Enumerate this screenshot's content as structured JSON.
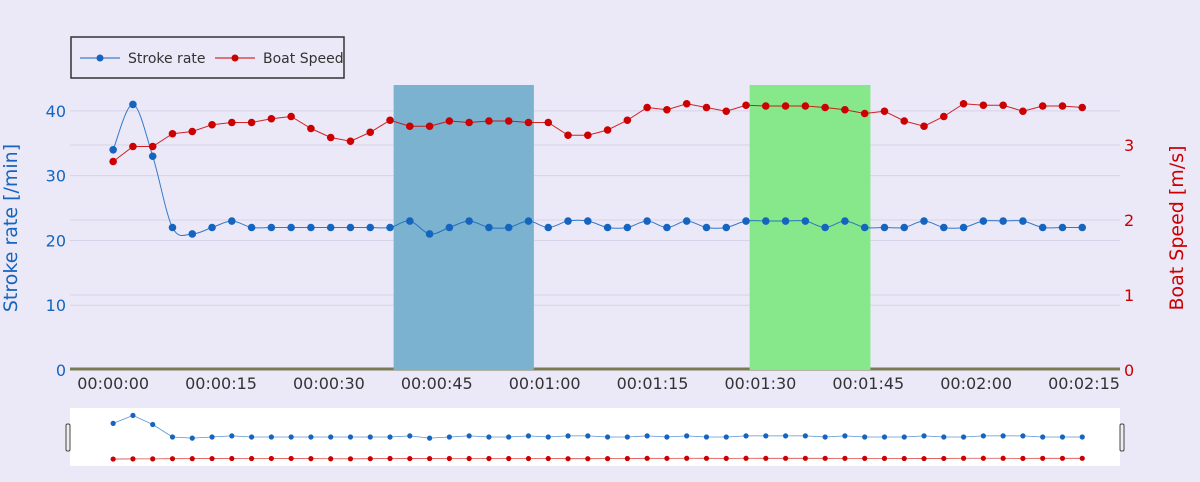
{
  "chart_data": {
    "type": "line",
    "x_unit": "seconds",
    "xlim": [
      -6,
      140
    ],
    "x_ticks": [
      {
        "value": 0,
        "label": "00:00:00"
      },
      {
        "value": 15,
        "label": "00:00:15"
      },
      {
        "value": 30,
        "label": "00:00:30"
      },
      {
        "value": 45,
        "label": "00:00:45"
      },
      {
        "value": 60,
        "label": "00:01:00"
      },
      {
        "value": 75,
        "label": "00:01:15"
      },
      {
        "value": 90,
        "label": "00:01:30"
      },
      {
        "value": 105,
        "label": "00:01:45"
      },
      {
        "value": 120,
        "label": "00:02:00"
      },
      {
        "value": 135,
        "label": "00:02:15"
      }
    ],
    "y_left": {
      "label": "Stroke rate [/min]",
      "range": [
        0,
        44
      ],
      "ticks": [
        0,
        10,
        20,
        30,
        40
      ],
      "color": "#1565c0"
    },
    "y_right": {
      "label": "Boat Speed [m/s]",
      "range": [
        0,
        3.8
      ],
      "ticks": [
        0,
        1,
        2,
        3
      ],
      "color": "#cc0000"
    },
    "grid": true,
    "legend_position": "top-left",
    "x": [
      0,
      2.75,
      5.5,
      8.25,
      11,
      13.75,
      16.5,
      19.25,
      22,
      24.75,
      27.5,
      30.25,
      33,
      35.75,
      38.5,
      41.25,
      44,
      46.75,
      49.5,
      52.25,
      55,
      57.75,
      60.5,
      63.25,
      66,
      68.75,
      71.5,
      74.25,
      77,
      79.75,
      82.5,
      85.25,
      88,
      90.75,
      93.5,
      96.25,
      99,
      101.75,
      104.5,
      107.25,
      110,
      112.75,
      115.5,
      118.25,
      121,
      123.75,
      126.5,
      129.25,
      132,
      134.75
    ],
    "series": [
      {
        "name": "Stroke rate",
        "axis": "left",
        "color": "#1565c0",
        "values": [
          34,
          41,
          33,
          22,
          21,
          22,
          23,
          22,
          22,
          22,
          22,
          22,
          22,
          22,
          22,
          23,
          21,
          22,
          23,
          22,
          22,
          23,
          22,
          23,
          23,
          22,
          22,
          23,
          22,
          23,
          22,
          22,
          23,
          23,
          23,
          23,
          22,
          23,
          22,
          22,
          22,
          23,
          22,
          22,
          23,
          23,
          23,
          22,
          22,
          22
        ]
      },
      {
        "name": "Boat Speed",
        "axis": "right",
        "color": "#cc0000",
        "values": [
          2.78,
          2.98,
          2.98,
          3.15,
          3.18,
          3.27,
          3.3,
          3.3,
          3.35,
          3.38,
          3.22,
          3.1,
          3.05,
          3.17,
          3.33,
          3.25,
          3.25,
          3.32,
          3.3,
          3.32,
          3.32,
          3.3,
          3.3,
          3.13,
          3.13,
          3.2,
          3.33,
          3.5,
          3.47,
          3.55,
          3.5,
          3.45,
          3.53,
          3.52,
          3.52,
          3.52,
          3.5,
          3.47,
          3.42,
          3.45,
          3.32,
          3.25,
          3.38,
          3.55,
          3.53,
          3.53,
          3.45,
          3.52,
          3.52,
          3.5
        ]
      }
    ],
    "highlight_regions": [
      {
        "x_start": 39,
        "x_end": 58.5,
        "color": "#7ab2cf"
      },
      {
        "x_start": 88.5,
        "x_end": 105.3,
        "color": "#87e78b"
      }
    ]
  }
}
